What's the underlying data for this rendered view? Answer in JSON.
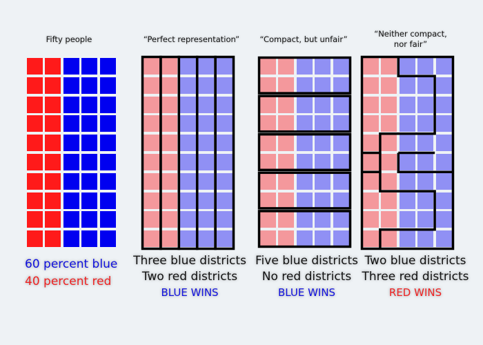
{
  "colors": {
    "background": "#eef2f5",
    "solid_red": "#ff1a1a",
    "solid_blue": "#0000f0",
    "pale_red": "#f4989c",
    "pale_blue": "#9090f4",
    "red_text": "#ee2222",
    "blue_text": "#1010dd"
  },
  "panels": [
    {
      "title": "Fifty people",
      "grid": {
        "rows": 10,
        "cols": 5,
        "red_cols": 2,
        "blue_cols": 3
      },
      "caption": [
        "60 percent blue",
        "40 percent red"
      ]
    },
    {
      "title": "“Perfect representation”",
      "districts": "5 vertical column districts",
      "caption": [
        "Three blue districts",
        "Two red districts"
      ],
      "result": "BLUE WINS"
    },
    {
      "title": "“Compact, but unfair”",
      "districts": "5 horizontal districts, 2 rows each",
      "caption": [
        "Five blue districts",
        "No red districts"
      ],
      "result": "BLUE WINS"
    },
    {
      "title": "“Neither compact, nor fair”",
      "title_lines": [
        "“Neither compact,",
        "nor fair”"
      ],
      "districts": "5 irregular districts",
      "caption": [
        "Two blue districts",
        "Three red districts"
      ],
      "result": "RED WINS"
    }
  ]
}
